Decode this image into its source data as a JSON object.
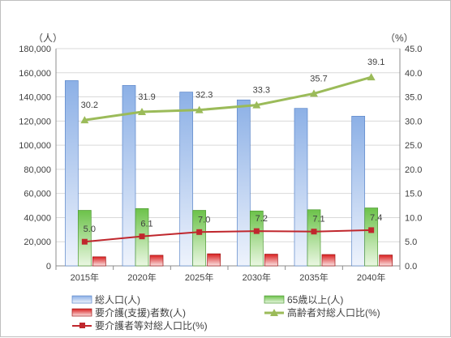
{
  "chart_data": {
    "type": "bar",
    "categories": [
      "2015年",
      "2020年",
      "2025年",
      "2030年",
      "2035年",
      "2040年"
    ],
    "y_left_unit": "（人）",
    "y_right_unit": "（%）",
    "ylim_left": [
      0,
      180000
    ],
    "ylim_right": [
      0,
      45.0
    ],
    "y_left_ticks": [
      "0",
      "20,000",
      "40,000",
      "60,000",
      "80,000",
      "100,000",
      "120,000",
      "140,000",
      "160,000",
      "180,000"
    ],
    "y_right_ticks": [
      "0.0",
      "5.0",
      "10.0",
      "15.0",
      "20.0",
      "25.0",
      "30.0",
      "35.0",
      "40.0",
      "45.0"
    ],
    "grid": true,
    "legend_position": "bottom",
    "series": [
      {
        "name": "総人口(人)",
        "kind": "bar",
        "axis": "left",
        "color": "#a9c4ec",
        "values": [
          153500,
          149500,
          144000,
          137500,
          130500,
          124000
        ]
      },
      {
        "name": "65歳以上(人)",
        "kind": "bar",
        "axis": "left",
        "color": "#7fcd5e",
        "values": [
          46000,
          47500,
          46000,
          45500,
          46500,
          48000
        ]
      },
      {
        "name": "要介護(支援)者数(人)",
        "kind": "bar",
        "axis": "left",
        "color": "#e03c3c",
        "values": [
          7500,
          8800,
          10000,
          9700,
          9400,
          9000
        ]
      },
      {
        "name": "高齢者対総人口比(%)",
        "kind": "line",
        "axis": "right",
        "color": "#9bbb59",
        "values": [
          30.2,
          31.9,
          32.3,
          33.3,
          35.7,
          39.1
        ],
        "labels": [
          "30.2",
          "31.9",
          "32.3",
          "33.3",
          "35.7",
          "39.1"
        ]
      },
      {
        "name": "要介護者等対総人口比(%)",
        "kind": "line",
        "axis": "right",
        "color": "#c0272d",
        "values": [
          5.0,
          6.1,
          7.0,
          7.2,
          7.1,
          7.4
        ],
        "labels": [
          "5.0",
          "6.1",
          "7.0",
          "7.2",
          "7.1",
          "7.4"
        ]
      }
    ]
  }
}
